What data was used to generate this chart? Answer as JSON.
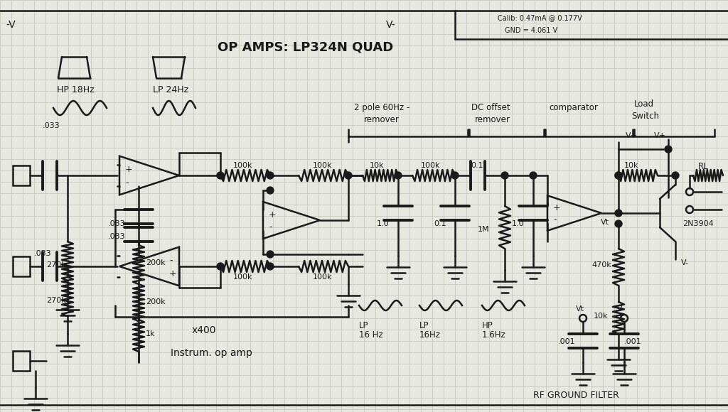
{
  "bg_color": "#e8e8e2",
  "grid_color": "#c0c4b8",
  "line_color": "#1a1a1a",
  "lw": 1.8,
  "title": "OP AMPS: LP324N QUAD",
  "top_neg_v": "-V",
  "top_v_minus": "V-",
  "top_calib": "Calib: 0.47mA @ 0.177V",
  "top_gnd": "GND = 4.061 V",
  "hp_label": "HP 18Hz",
  "lp_label": "LP 24Hz",
  "section_labels": {
    "two_pole": [
      "2 pole 60Hz -",
      "remover"
    ],
    "dc_offset": [
      "DC offset",
      "remover"
    ],
    "comparator": "comparator",
    "load": [
      "Load",
      "Switch"
    ]
  },
  "bottom_labels": {
    "lp1": [
      "LP",
      "16 Hz"
    ],
    "lp2": [
      "LP",
      "16Hz"
    ],
    "hp": [
      "HP",
      "1.6Hz"
    ]
  },
  "rf_label": "RF GROUND FILTER",
  "x400_label": "x400",
  "instrum_label": "Instrum. op amp"
}
